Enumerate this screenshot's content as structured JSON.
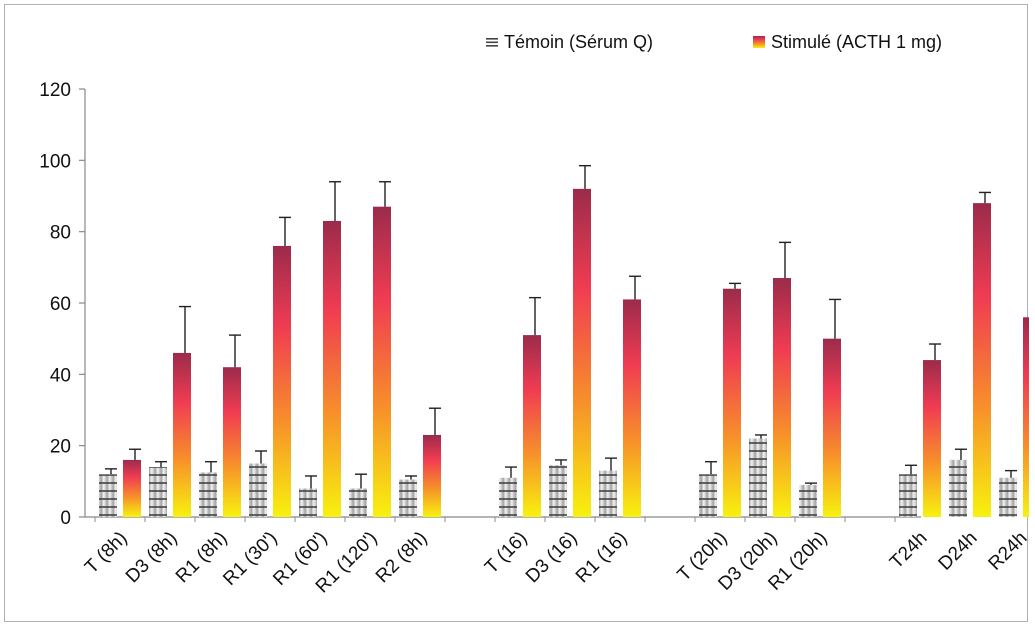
{
  "chart_data": {
    "type": "bar",
    "title": "",
    "xlabel": "",
    "ylabel": "",
    "ylim": [
      0,
      120
    ],
    "yticks": [
      0,
      20,
      40,
      60,
      80,
      100,
      120
    ],
    "grid": false,
    "legend_position": "top-right",
    "error_bars": true,
    "groups": [
      {
        "categories": [
          "T (8h)",
          "D3 (8h)",
          "R1 (8h)",
          "R1 (30')",
          "R1 (60')",
          "R1 (120')",
          "R2 (8h)"
        ]
      },
      {
        "categories": [
          "T (16)",
          "D3 (16)",
          "R1 (16)"
        ]
      },
      {
        "categories": [
          "T (20h)",
          "D3 (20h)",
          "R1 (20h)"
        ]
      },
      {
        "categories": [
          "T24h",
          "D24h",
          "R24h"
        ]
      }
    ],
    "categories": [
      "T (8h)",
      "D3 (8h)",
      "R1 (8h)",
      "R1 (30')",
      "R1 (60')",
      "R1 (120')",
      "R2 (8h)",
      "T (16)",
      "D3 (16)",
      "R1 (16)",
      "T (20h)",
      "D3 (20h)",
      "R1 (20h)",
      "T24h",
      "D24h",
      "R24h"
    ],
    "series": [
      {
        "name": "Témoin (Sérum Q)",
        "values": [
          12,
          14,
          12.5,
          15,
          8,
          8,
          10.5,
          11,
          14.5,
          13,
          12,
          22,
          9,
          12,
          16,
          11
        ],
        "errors": [
          1.5,
          1.5,
          3,
          3.5,
          3.5,
          4,
          1,
          3,
          1.5,
          3.5,
          3.5,
          1,
          0.5,
          2.5,
          3,
          2
        ]
      },
      {
        "name": "Stimulé (ACTH 1 mg)",
        "values": [
          16,
          46,
          42,
          76,
          83,
          87,
          23,
          51,
          92,
          61,
          64,
          67,
          50,
          44,
          88,
          56
        ],
        "errors": [
          3,
          13,
          9,
          8,
          11,
          7,
          7.5,
          10.5,
          6.5,
          6.5,
          1.5,
          10,
          11,
          4.5,
          3,
          1
        ]
      }
    ],
    "colors": {
      "stim_top": "#9b2b4b",
      "stim_mid": "#f03c52",
      "stim_low": "#f7902a",
      "stim_bottom": "#f7f20e",
      "temoin_light": "#f0f0f0",
      "temoin_dark": "#3a3a3a",
      "axis": "#888888",
      "error_bar": "#222222"
    }
  }
}
